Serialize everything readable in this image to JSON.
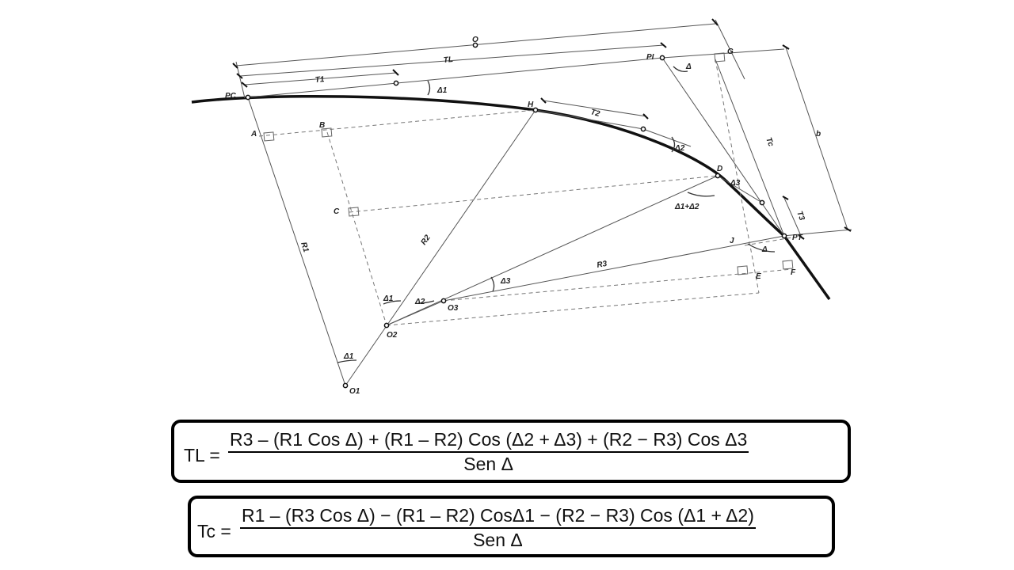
{
  "diagram": {
    "labels": {
      "PC": "PC",
      "PI": "PI",
      "PT": "PT",
      "H": "H",
      "D": "D",
      "G": "G",
      "A": "A",
      "B": "B",
      "C": "C",
      "E": "E",
      "F": "F",
      "J": "J",
      "O": "O",
      "TL": "TL",
      "T1": "T1",
      "T2": "T2",
      "T3": "T3",
      "Tc": "Tc",
      "b": "b",
      "R1": "R1",
      "R2": "R2",
      "R3": "R3",
      "O1": "O1",
      "O2": "O2",
      "O3": "O3",
      "delta": "Δ",
      "delta1": "Δ1",
      "delta2": "Δ2",
      "delta3": "Δ3",
      "delta12": "Δ1+Δ2"
    }
  },
  "formulas": [
    {
      "lhs": "TL =",
      "numerator": "R3 – (R1 Cos Δ) + (R1 – R2) Cos (Δ2 + Δ3) + (R2 − R3) Cos Δ3",
      "denominator": "Sen Δ"
    },
    {
      "lhs": "Tc =",
      "numerator": "R1 – (R3 Cos Δ) − (R1 – R2) CosΔ1 − (R2 − R3) Cos (Δ1 + Δ2)",
      "denominator": "Sen Δ"
    }
  ]
}
